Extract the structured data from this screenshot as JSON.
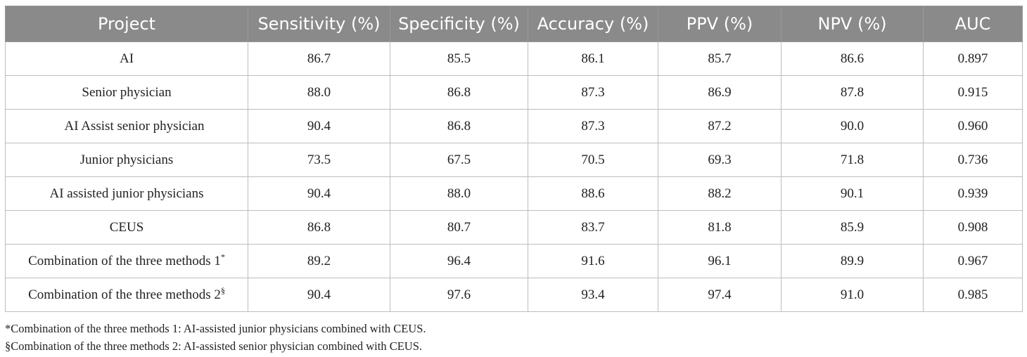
{
  "table": {
    "headers": [
      "Project",
      "Sensitivity (%)",
      "Specificity (%)",
      "Accuracy (%)",
      "PPV (%)",
      "NPV (%)",
      "AUC"
    ],
    "rows": [
      {
        "project": "AI",
        "mark": "",
        "values": [
          "86.7",
          "85.5",
          "86.1",
          "85.7",
          "86.6",
          "0.897"
        ]
      },
      {
        "project": "Senior physician",
        "mark": "",
        "values": [
          "88.0",
          "86.8",
          "87.3",
          "86.9",
          "87.8",
          "0.915"
        ]
      },
      {
        "project": "AI Assist senior physician",
        "mark": "",
        "values": [
          "90.4",
          "86.8",
          "87.3",
          "87.2",
          "90.0",
          "0.960"
        ]
      },
      {
        "project": "Junior physicians",
        "mark": "",
        "values": [
          "73.5",
          "67.5",
          "70.5",
          "69.3",
          "71.8",
          "0.736"
        ]
      },
      {
        "project": "AI assisted junior physicians",
        "mark": "",
        "values": [
          "90.4",
          "88.0",
          "88.6",
          "88.2",
          "90.1",
          "0.939"
        ]
      },
      {
        "project": "CEUS",
        "mark": "",
        "values": [
          "86.8",
          "80.7",
          "83.7",
          "81.8",
          "85.9",
          "0.908"
        ]
      },
      {
        "project": "Combination of the three methods 1",
        "mark": "*",
        "values": [
          "89.2",
          "96.4",
          "91.6",
          "96.1",
          "89.9",
          "0.967"
        ]
      },
      {
        "project": "Combination of the three methods 2",
        "mark": "§",
        "values": [
          "90.4",
          "97.6",
          "93.4",
          "97.4",
          "91.0",
          "0.985"
        ]
      }
    ]
  },
  "footnotes": [
    "*Combination of the three methods 1: AI-assisted junior physicians combined with CEUS.",
    "§Combination of the three methods 2: AI-assisted senior physician combined with CEUS."
  ]
}
